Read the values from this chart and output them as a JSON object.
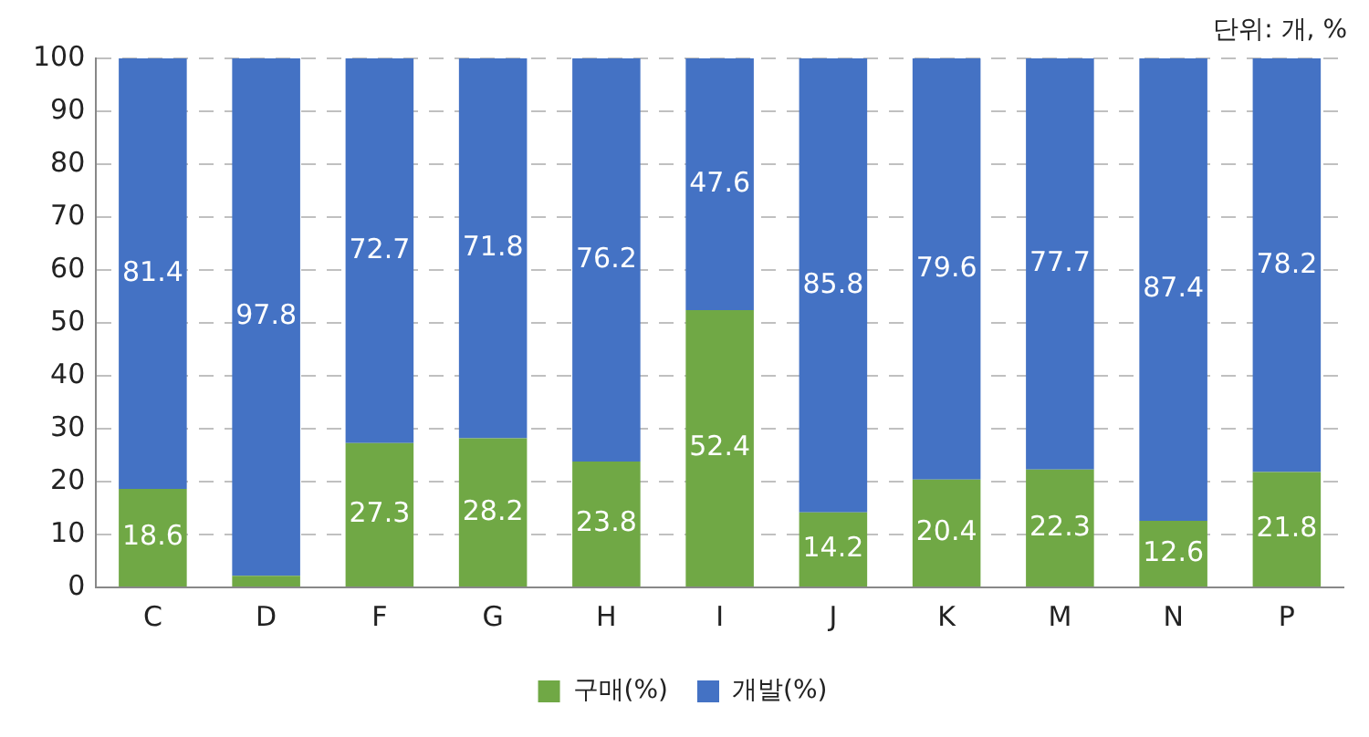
{
  "chart_data": {
    "type": "bar",
    "stacked": true,
    "categories": [
      "C",
      "D",
      "F",
      "G",
      "H",
      "I",
      "J",
      "K",
      "M",
      "N",
      "P"
    ],
    "series": [
      {
        "name": "구매(%)",
        "color": "#70a845",
        "values": [
          18.6,
          2.2,
          27.3,
          28.2,
          23.8,
          52.4,
          14.2,
          20.4,
          22.3,
          12.6,
          21.8
        ],
        "value_labels": [
          "18.6",
          null,
          "27.3",
          "28.2",
          "23.8",
          "52.4",
          "14.2",
          "20.4",
          "22.3",
          "12.6",
          "21.8"
        ]
      },
      {
        "name": "개발(%)",
        "color": "#4472c4",
        "values": [
          81.4,
          97.8,
          72.7,
          71.8,
          76.2,
          47.6,
          85.8,
          79.6,
          77.7,
          87.4,
          78.2
        ],
        "value_labels": [
          "81.4",
          "97.8",
          "72.7",
          "71.8",
          "76.2",
          "47.6",
          "85.8",
          "79.6",
          "77.7",
          "87.4",
          "78.2"
        ]
      }
    ],
    "ylim": [
      0,
      100
    ],
    "yticks": [
      0,
      10,
      20,
      30,
      40,
      50,
      60,
      70,
      80,
      90,
      100
    ],
    "grid": "y",
    "legend": "bottom",
    "annotations": [
      "단위: 개, %"
    ]
  }
}
